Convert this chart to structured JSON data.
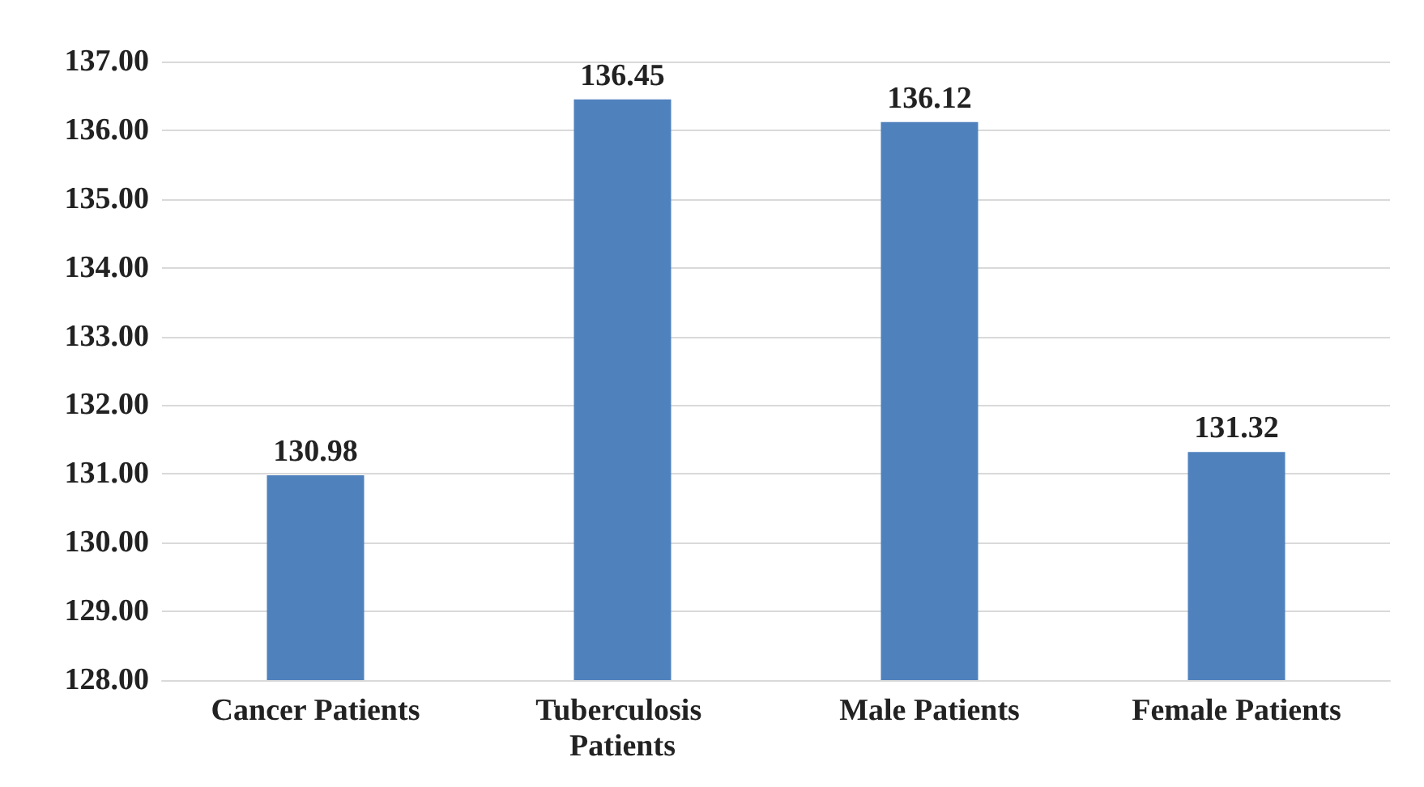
{
  "chart_data": {
    "type": "bar",
    "categories": [
      "Cancer Patients",
      "Tuberculosis Patients",
      "Male Patients",
      "Female Patients"
    ],
    "values": [
      130.98,
      136.45,
      136.12,
      131.32
    ],
    "color": "#4f81bd",
    "ylim": [
      128,
      137
    ],
    "yticks": [
      {
        "value": 128,
        "label": "128.00"
      },
      {
        "value": 129,
        "label": "129.00"
      },
      {
        "value": 130,
        "label": "130.00"
      },
      {
        "value": 131,
        "label": "131.00"
      },
      {
        "value": 132,
        "label": "132.00"
      },
      {
        "value": 133,
        "label": "133.00"
      },
      {
        "value": 134,
        "label": "134.00"
      },
      {
        "value": 135,
        "label": "135.00"
      },
      {
        "value": 136,
        "label": "136.00"
      },
      {
        "value": 137,
        "label": "137.00"
      }
    ],
    "grid": "y",
    "data_labels": true
  }
}
